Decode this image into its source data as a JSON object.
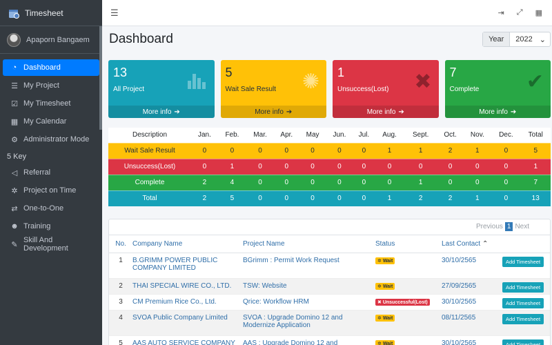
{
  "brand": {
    "title": "Timesheet"
  },
  "user": {
    "name": "Apaporn Bangaem"
  },
  "menu": [
    {
      "label": "Dashboard",
      "icon": "dashboard-icon"
    },
    {
      "label": "My Project",
      "icon": "list-icon"
    },
    {
      "label": "My Timesheet",
      "icon": "calendar-check-icon"
    },
    {
      "label": "My Calendar",
      "icon": "calendar-icon"
    },
    {
      "label": "Administrator Mode",
      "icon": "user-cog-icon"
    }
  ],
  "section_header": "5 Key",
  "menu2": [
    {
      "label": "Referral",
      "icon": "bullhorn-icon"
    },
    {
      "label": "Project on Time",
      "icon": "spinner-icon"
    },
    {
      "label": "One-to-One",
      "icon": "exchange-icon"
    },
    {
      "label": "Training",
      "icon": "users-icon"
    },
    {
      "label": "Skill And Development",
      "icon": "edit-icon"
    }
  ],
  "page": {
    "title": "Dashboard",
    "year_label": "Year",
    "year_value": "2022"
  },
  "boxes": [
    {
      "num": "13",
      "label": "All Project",
      "more": "More info"
    },
    {
      "num": "5",
      "label": "Wait Sale Result",
      "more": "More info"
    },
    {
      "num": "1",
      "label": "Unsuccess(Lost)",
      "more": "More info"
    },
    {
      "num": "7",
      "label": "Complete",
      "more": "More info"
    }
  ],
  "summary": {
    "headers": [
      "Description",
      "Jan.",
      "Feb.",
      "Mar.",
      "Apr.",
      "May",
      "Jun.",
      "Jul.",
      "Aug.",
      "Sept.",
      "Oct.",
      "Nov.",
      "Dec.",
      "Total"
    ],
    "rows": [
      [
        "Wait Sale Result",
        "0",
        "0",
        "0",
        "0",
        "0",
        "0",
        "0",
        "1",
        "1",
        "2",
        "1",
        "0",
        "5"
      ],
      [
        "Unsuccess(Lost)",
        "0",
        "1",
        "0",
        "0",
        "0",
        "0",
        "0",
        "0",
        "0",
        "0",
        "0",
        "0",
        "1"
      ],
      [
        "Complete",
        "2",
        "4",
        "0",
        "0",
        "0",
        "0",
        "0",
        "0",
        "1",
        "0",
        "0",
        "0",
        "7"
      ],
      [
        "Total",
        "2",
        "5",
        "0",
        "0",
        "0",
        "0",
        "0",
        "1",
        "2",
        "2",
        "1",
        "0",
        "13"
      ]
    ]
  },
  "pager": {
    "previous": "Previous",
    "current": "1",
    "next": "Next"
  },
  "list": {
    "headers": {
      "no": "No.",
      "company": "Company Name",
      "project": "Project Name",
      "status": "Status",
      "last_contact": "Last Contact"
    },
    "add_label": "Add Timesheet",
    "rows": [
      {
        "no": "1",
        "company": "B.GRIMM POWER PUBLIC COMPANY LIMITED",
        "project": "BGrimm : Permit Work Request",
        "status": "Wait",
        "date": "30/10/2565"
      },
      {
        "no": "2",
        "company": "THAI SPECIAL WIRE CO., LTD.",
        "project": "TSW: Website",
        "status": "Wait",
        "date": "27/09/2565"
      },
      {
        "no": "3",
        "company": "CM Premium Rice Co., Ltd.",
        "project": "Qrice: Workflow HRM",
        "status": "Unsuccessful(Lost)",
        "date": "30/10/2565"
      },
      {
        "no": "4",
        "company": "SVOA Public Company Limited",
        "project": "SVOA : Upgrade Domino 12 and Modernize Application",
        "status": "Wait",
        "date": "08/11/2565"
      },
      {
        "no": "5",
        "company": "AAS AUTO SERVICE COMPANY",
        "project": "AAS : Upgrade Domino 12 and",
        "status": "Wait",
        "date": "30/10/2565"
      }
    ]
  }
}
